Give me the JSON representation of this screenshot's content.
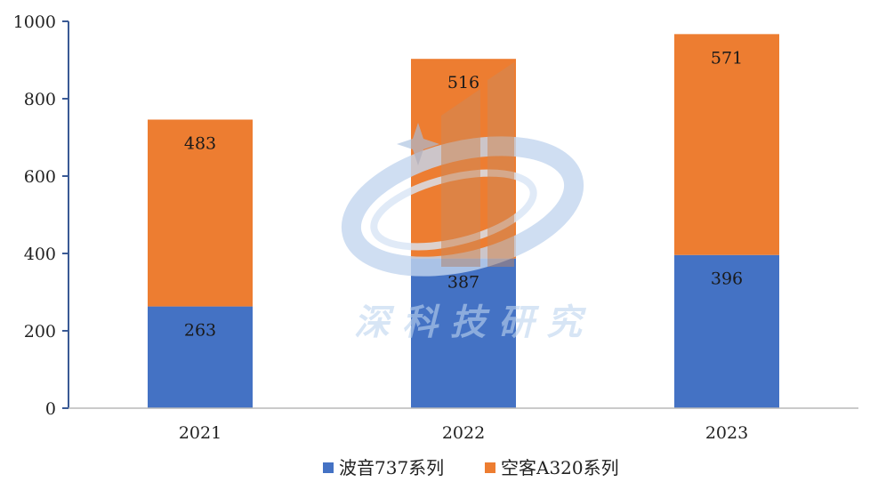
{
  "chart_data": {
    "type": "bar",
    "stacked": true,
    "categories": [
      "2021",
      "2022",
      "2023"
    ],
    "series": [
      {
        "name": "波音737系列",
        "values": [
          263,
          387,
          396
        ],
        "color": "#4472C4"
      },
      {
        "name": "空客A320系列",
        "values": [
          483,
          516,
          571
        ],
        "color": "#ED7D31"
      }
    ],
    "title": "",
    "xlabel": "",
    "ylabel": "",
    "ylim": [
      0,
      1000
    ],
    "yticks": [
      0,
      200,
      400,
      600,
      800,
      1000
    ],
    "grid": false,
    "legend_position": "bottom"
  },
  "watermark": {
    "text": "深科技研究"
  }
}
